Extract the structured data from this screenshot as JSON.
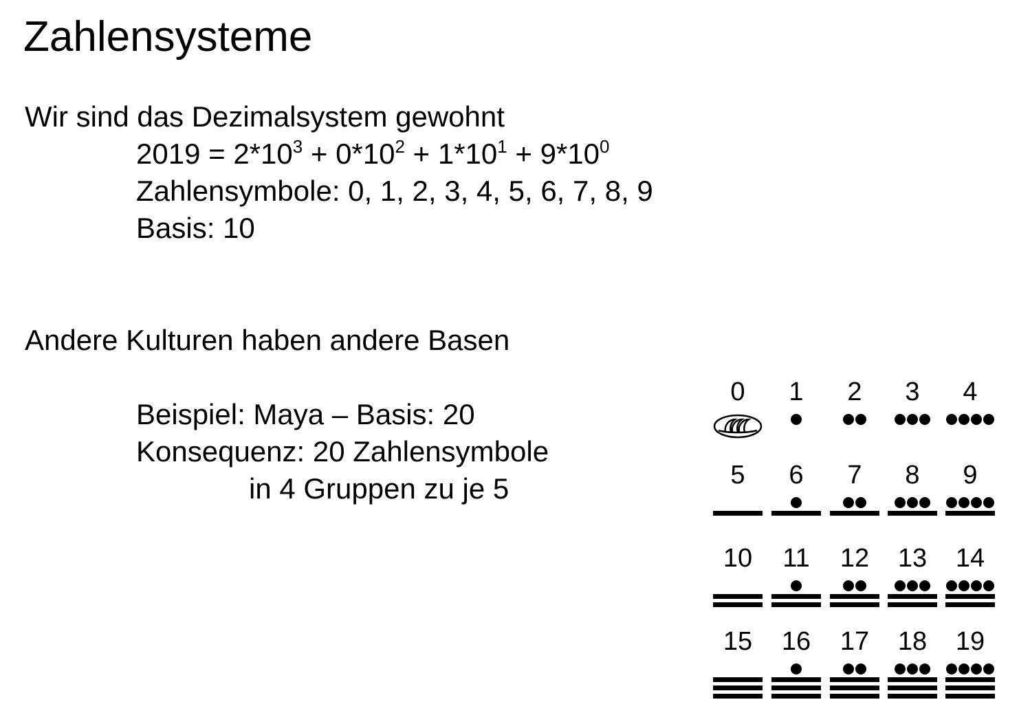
{
  "title": "Zahlensysteme",
  "section1": {
    "heading": "Wir sind das Dezimalsystem gewohnt",
    "equation": {
      "lhs": "2019 = ",
      "terms": [
        {
          "coef": "2*10",
          "exp": "3",
          "sep": " + "
        },
        {
          "coef": "0*10",
          "exp": "2",
          "sep": " + "
        },
        {
          "coef": "1*10",
          "exp": "1",
          "sep": " + "
        },
        {
          "coef": "9*10",
          "exp": "0",
          "sep": ""
        }
      ]
    },
    "symbols": "Zahlensymbole: 0, 1, 2, 3, 4, 5, 6, 7, 8, 9",
    "basis": "Basis: 10"
  },
  "section2": {
    "heading": "Andere Kulturen haben andere Basen",
    "example": "Beispiel: Maya – Basis: 20",
    "consequence": "Konsequenz: 20 Zahlensymbole",
    "groups": "in 4 Gruppen zu je 5"
  },
  "maya_numerals": [
    {
      "label": "0",
      "dots": 0,
      "bars": 0,
      "shell": true
    },
    {
      "label": "1",
      "dots": 1,
      "bars": 0
    },
    {
      "label": "2",
      "dots": 2,
      "bars": 0
    },
    {
      "label": "3",
      "dots": 3,
      "bars": 0
    },
    {
      "label": "4",
      "dots": 4,
      "bars": 0
    },
    {
      "label": "5",
      "dots": 0,
      "bars": 1
    },
    {
      "label": "6",
      "dots": 1,
      "bars": 1
    },
    {
      "label": "7",
      "dots": 2,
      "bars": 1
    },
    {
      "label": "8",
      "dots": 3,
      "bars": 1
    },
    {
      "label": "9",
      "dots": 4,
      "bars": 1
    },
    {
      "label": "10",
      "dots": 0,
      "bars": 2
    },
    {
      "label": "11",
      "dots": 1,
      "bars": 2
    },
    {
      "label": "12",
      "dots": 2,
      "bars": 2
    },
    {
      "label": "13",
      "dots": 3,
      "bars": 2
    },
    {
      "label": "14",
      "dots": 4,
      "bars": 2
    },
    {
      "label": "15",
      "dots": 0,
      "bars": 3
    },
    {
      "label": "16",
      "dots": 1,
      "bars": 3
    },
    {
      "label": "17",
      "dots": 2,
      "bars": 3
    },
    {
      "label": "18",
      "dots": 3,
      "bars": 3
    },
    {
      "label": "19",
      "dots": 4,
      "bars": 3
    }
  ]
}
